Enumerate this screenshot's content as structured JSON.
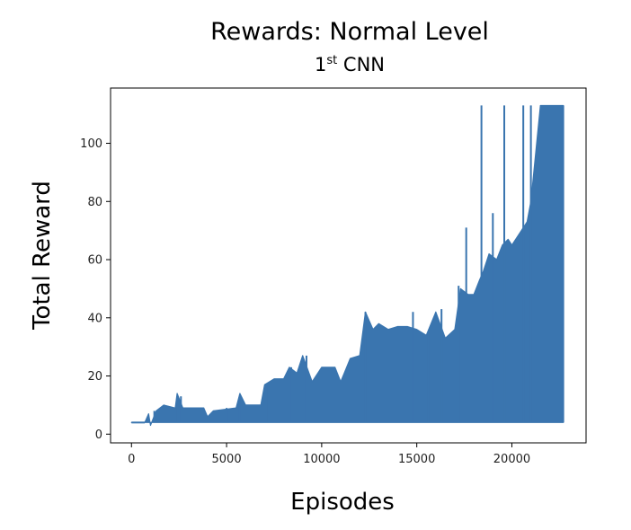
{
  "chart_data": {
    "type": "line",
    "title": "Rewards: Normal Level",
    "subtitle": {
      "base": "1",
      "sup": "st",
      "rest": " CNN"
    },
    "xlabel": "Episodes",
    "ylabel": "Total Reward",
    "xlim": [
      -1100,
      23900
    ],
    "ylim": [
      -3,
      119
    ],
    "xticks": [
      0,
      5000,
      10000,
      15000,
      20000
    ],
    "yticks": [
      0,
      20,
      40,
      60,
      80,
      100
    ],
    "grid": false,
    "color": "#3a75af",
    "series": [
      {
        "baseline": 4,
        "envelope": [
          [
            0,
            4
          ],
          [
            700,
            4
          ],
          [
            900,
            7
          ],
          [
            1000,
            3
          ],
          [
            1300,
            8
          ],
          [
            1700,
            10
          ],
          [
            2300,
            9
          ],
          [
            2400,
            14
          ],
          [
            2700,
            9
          ],
          [
            3200,
            9
          ],
          [
            3800,
            9
          ],
          [
            4000,
            6
          ],
          [
            4300,
            8
          ],
          [
            5500,
            9
          ],
          [
            5700,
            14
          ],
          [
            6000,
            10
          ],
          [
            6800,
            10
          ],
          [
            7000,
            17
          ],
          [
            7500,
            19
          ],
          [
            8000,
            19
          ],
          [
            8300,
            23
          ],
          [
            8700,
            21
          ],
          [
            9000,
            27
          ],
          [
            9500,
            18
          ],
          [
            10000,
            23
          ],
          [
            10700,
            23
          ],
          [
            11000,
            18
          ],
          [
            11500,
            26
          ],
          [
            12000,
            27
          ],
          [
            12300,
            42
          ],
          [
            12700,
            36
          ],
          [
            13000,
            38
          ],
          [
            13500,
            36
          ],
          [
            14000,
            37
          ],
          [
            14500,
            37
          ],
          [
            15000,
            36
          ],
          [
            15500,
            34
          ],
          [
            16000,
            42
          ],
          [
            16500,
            33
          ],
          [
            17000,
            36
          ],
          [
            17300,
            50
          ],
          [
            17700,
            48
          ],
          [
            18000,
            48
          ],
          [
            18300,
            53
          ],
          [
            18500,
            56
          ],
          [
            18800,
            62
          ],
          [
            19200,
            60
          ],
          [
            19500,
            65
          ],
          [
            19800,
            67
          ],
          [
            20000,
            65
          ],
          [
            20500,
            70
          ],
          [
            20800,
            73
          ],
          [
            21000,
            80
          ],
          [
            21500,
            113
          ],
          [
            22700,
            113
          ]
        ],
        "spikes": [
          [
            1200,
            8
          ],
          [
            2400,
            13
          ],
          [
            2600,
            13
          ],
          [
            5000,
            9
          ],
          [
            5700,
            13
          ],
          [
            7200,
            17
          ],
          [
            8400,
            23
          ],
          [
            9200,
            27
          ],
          [
            12300,
            42
          ],
          [
            13000,
            38
          ],
          [
            14800,
            42
          ],
          [
            15600,
            35
          ],
          [
            16300,
            43
          ],
          [
            17200,
            51
          ],
          [
            17600,
            71
          ],
          [
            18400,
            113
          ],
          [
            19000,
            76
          ],
          [
            19600,
            113
          ],
          [
            20600,
            113
          ],
          [
            21000,
            113
          ]
        ]
      }
    ]
  }
}
